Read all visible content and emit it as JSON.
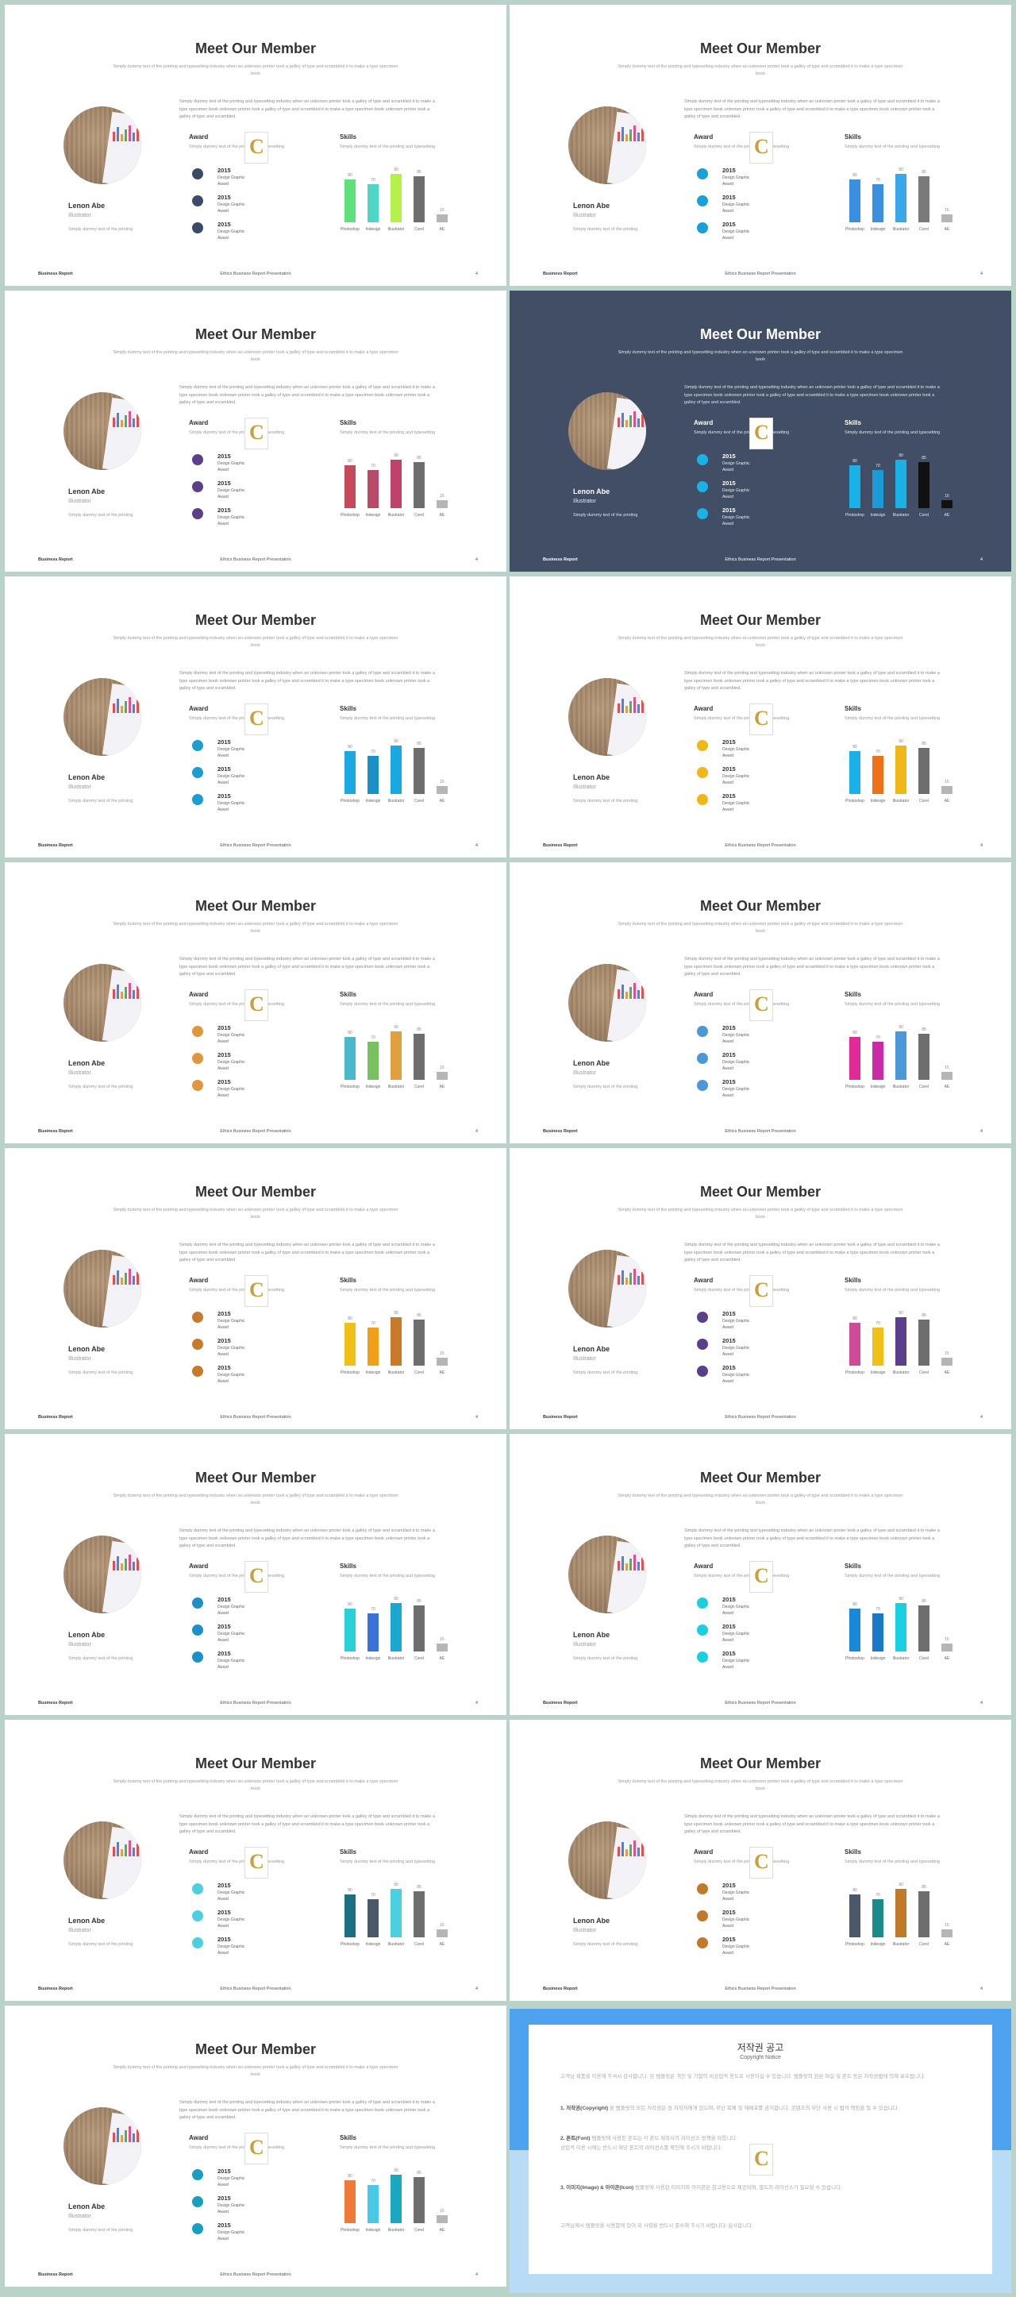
{
  "slide_common": {
    "title": "Meet Our Member",
    "subtitle": "Simply dummy text of the printing and typesetting industry when an unknown printer took a galley of type and scrambled it to make a type specimen book",
    "description": "Simply dummy text of the printing and typesetting industry when an unknown printer took a galley of type and scrambled it to make a type specimen book unknown printer took a galley of type and scrambled it to make a type specimen book unknown printer took a galley of type and scrambled.",
    "person_name": "Lenon Abe",
    "person_role": "Illustrator",
    "person_desc": "Simply dummy text of the printing",
    "award_title": "Award",
    "award_desc": "Simply dummy text of the printing and typesetting",
    "skills_title": "Skills",
    "skills_desc": "Simply dummy text of the printing and typesetting",
    "awards": [
      {
        "year": "2015",
        "line1": "Design Graphic",
        "line2": "Award"
      },
      {
        "year": "2015",
        "line1": "Design Graphic",
        "line2": "Award"
      },
      {
        "year": "2015",
        "line1": "Design Graphic",
        "line2": "Award"
      }
    ],
    "footer_left": "Business Report",
    "footer_center": "Ethics Business Report Presentation",
    "footer_right": "4"
  },
  "chart_data": {
    "type": "bar",
    "categories": [
      "Photoshop",
      "Indesign",
      "Illustrator",
      "Corel",
      "AE"
    ],
    "values": [
      80,
      70,
      90,
      85,
      15
    ],
    "ylim": [
      0,
      100
    ]
  },
  "slides": [
    {
      "dark": false,
      "dot": "#3b4a66",
      "bars": [
        "#5ee07a",
        "#4dd6c4",
        "#b6f04a",
        "#6e6e6e",
        "#b5b5b5"
      ]
    },
    {
      "dark": false,
      "dot": "#1aa0d8",
      "bars": [
        "#3a8fe0",
        "#3a8fe0",
        "#3aa7e8",
        "#7a7a7a",
        "#b5b5b5"
      ]
    },
    {
      "dark": false,
      "dot": "#5b3f8c",
      "bars": [
        "#c44a5a",
        "#b84a6a",
        "#c0426a",
        "#6e6e6e",
        "#b5b5b5"
      ]
    },
    {
      "dark": true,
      "dot": "#1ab2e6",
      "bars": [
        "#1ab2e6",
        "#1a9ad8",
        "#1ab2e6",
        "#111111",
        "#111111"
      ]
    },
    {
      "dark": false,
      "dot": "#1a9dd0",
      "bars": [
        "#1aa8e0",
        "#1a90c8",
        "#1aa8e0",
        "#6e6e6e",
        "#b5b5b5"
      ]
    },
    {
      "dark": false,
      "dot": "#f0b816",
      "bars": [
        "#1ab0e8",
        "#f07018",
        "#f0b816",
        "#6e6e6e",
        "#b5b5b5"
      ]
    },
    {
      "dark": false,
      "dot": "#e0963a",
      "bars": [
        "#4ab8c8",
        "#78c060",
        "#e0a040",
        "#6e6e6e",
        "#b5b5b5"
      ]
    },
    {
      "dark": false,
      "dot": "#4a98d8",
      "bars": [
        "#e02a98",
        "#c82aa8",
        "#4a98d8",
        "#6e6e6e",
        "#b5b5b5"
      ]
    },
    {
      "dark": false,
      "dot": "#c87a2a",
      "bars": [
        "#f0c018",
        "#f0a018",
        "#c87a2a",
        "#6e6e6e",
        "#b5b5b5"
      ]
    },
    {
      "dark": false,
      "dot": "#5a3f8c",
      "bars": [
        "#d04a9a",
        "#f0c018",
        "#5a3f8c",
        "#6e6e6e",
        "#b5b5b5"
      ]
    },
    {
      "dark": false,
      "dot": "#1a8fc8",
      "bars": [
        "#2ad0d8",
        "#3a72d8",
        "#1aa8d0",
        "#6e6e6e",
        "#b5b5b5"
      ]
    },
    {
      "dark": false,
      "dot": "#1ad0e0",
      "bars": [
        "#1a88d8",
        "#1a78c8",
        "#1ad0e0",
        "#6e6e6e",
        "#b5b5b5"
      ]
    },
    {
      "dark": false,
      "dot": "#4ad0e0",
      "bars": [
        "#1a7080",
        "#4a5868",
        "#4ad0e0",
        "#6e6e6e",
        "#b5b5b5"
      ]
    },
    {
      "dark": false,
      "dot": "#c07a2a",
      "bars": [
        "#4a5868",
        "#1a8a8a",
        "#c07a2a",
        "#6e6e6e",
        "#b5b5b5"
      ]
    },
    {
      "dark": false,
      "dot": "#1a9ec0",
      "bars": [
        "#f07838",
        "#4ac8e8",
        "#1aa8c0",
        "#6e6e6e",
        "#b5b5b5"
      ]
    }
  ],
  "copyright": {
    "title": "저작권 공고",
    "subtitle": "Copyright Notice",
    "p0": "고객님 제품을 이용해 주셔서 감사합니다. 본 템플릿은 개인 및 기업의 비상업적 용도로 사용하실 수 있습니다. 템플릿의 원본 파일 및 폰트 등은 저작권법에 의해 보호됩니다.",
    "p1h": "1. 저작권(Copyright)",
    "p1": " 본 템플릿의 모든 저작권은 원 저작자에게 있으며, 무단 복제 및 재배포를 금지합니다. 콘텐츠의 무단 사용 시 법적 책임을 질 수 있습니다.",
    "p2h": "2. 폰트(Font)",
    "p2": " 템플릿에 사용된 폰트는 각 폰트 제작사의 라이선스 정책을 따릅니다. 상업적 이용 시에는 반드시 해당 폰트의 라이선스를 확인해 주시기 바랍니다.",
    "p3h": "3. 이미지(Image) & 아이콘(Icon)",
    "p3": " 템플릿에 사용된 이미지와 아이콘은 참고용으로 제공되며, 별도의 라이선스가 필요할 수 있습니다.",
    "p4": "고객님께서 템플릿을 사용함에 있어 위 사항을 반드시 준수해 주시기 바랍니다. 감사합니다."
  }
}
